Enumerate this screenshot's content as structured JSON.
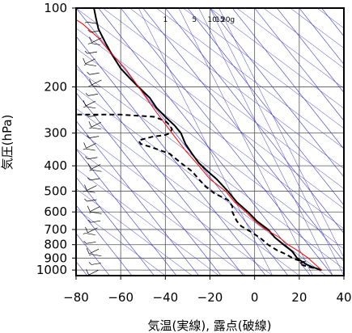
{
  "chart_data": {
    "type": "line",
    "xlabel": "気温(実線), 露点(破線)",
    "ylabel": "気圧(hPa)",
    "xlim": [
      -80,
      40
    ],
    "ylim": [
      1050,
      100
    ],
    "y_scale": "log",
    "x_ticks": [
      -80,
      -60,
      -40,
      -20,
      0,
      20,
      40
    ],
    "y_ticks": [
      100,
      200,
      300,
      400,
      500,
      600,
      700,
      800,
      900,
      1000
    ],
    "mixing_ratio_labels": [
      "1",
      "5",
      "10",
      "15",
      "20g"
    ],
    "grid": true,
    "colors": {
      "temperature": "#000000",
      "dewpoint": "#000000",
      "parcel": "#ff0000",
      "background_lines": "#3333cc",
      "wind": "#000000"
    },
    "series": [
      {
        "style": "solid",
        "color": "#000000",
        "points": [
          [
            30,
            1000
          ],
          [
            26,
            975
          ],
          [
            23,
            950
          ],
          [
            21,
            925
          ],
          [
            19,
            900
          ],
          [
            17,
            850
          ],
          [
            13,
            800
          ],
          [
            9,
            750
          ],
          [
            6,
            700
          ],
          [
            1,
            650
          ],
          [
            -3,
            600
          ],
          [
            -8,
            550
          ],
          [
            -12,
            500
          ],
          [
            -17,
            450
          ],
          [
            -21,
            420
          ],
          [
            -25,
            390
          ],
          [
            -28,
            360
          ],
          [
            -31,
            330
          ],
          [
            -33,
            300
          ],
          [
            -36,
            280
          ],
          [
            -40,
            260
          ],
          [
            -44,
            240
          ],
          [
            -47,
            220
          ],
          [
            -52,
            200
          ],
          [
            -56,
            185
          ],
          [
            -60,
            170
          ],
          [
            -64,
            150
          ],
          [
            -67,
            135
          ],
          [
            -70,
            120
          ],
          [
            -71,
            110
          ],
          [
            -72,
            100
          ]
        ]
      },
      {
        "style": "dashed",
        "color": "#000000",
        "points": [
          [
            30,
            1000
          ],
          [
            25,
            975
          ],
          [
            22,
            960
          ],
          [
            20,
            945
          ],
          [
            22,
            930
          ],
          [
            19,
            915
          ],
          [
            17,
            900
          ],
          [
            14,
            870
          ],
          [
            10,
            840
          ],
          [
            6,
            800
          ],
          [
            3,
            760
          ],
          [
            -1,
            720
          ],
          [
            -6,
            680
          ],
          [
            -8,
            650
          ],
          [
            -10,
            600
          ],
          [
            -10,
            570
          ],
          [
            -12,
            540
          ],
          [
            -18,
            510
          ],
          [
            -22,
            480
          ],
          [
            -25,
            450
          ],
          [
            -28,
            420
          ],
          [
            -33,
            390
          ],
          [
            -38,
            360
          ],
          [
            -46,
            340
          ],
          [
            -51,
            330
          ],
          [
            -52,
            320
          ],
          [
            -46,
            310
          ],
          [
            -40,
            305
          ],
          [
            -38,
            300
          ],
          [
            -37,
            290
          ],
          [
            -38,
            280
          ],
          [
            -40,
            270
          ],
          [
            -45,
            260
          ],
          [
            -60,
            255
          ],
          [
            -70,
            255
          ],
          [
            -80,
            255
          ]
        ]
      },
      {
        "style": "solid",
        "color": "#ff0000",
        "points": [
          [
            30,
            1000
          ],
          [
            27,
            950
          ],
          [
            24,
            900
          ],
          [
            20,
            850
          ],
          [
            15,
            800
          ],
          [
            11,
            750
          ],
          [
            5,
            700
          ],
          [
            0,
            650
          ],
          [
            -4,
            600
          ],
          [
            -9,
            550
          ],
          [
            -13,
            500
          ],
          [
            -20,
            450
          ],
          [
            -25,
            400
          ],
          [
            -31,
            350
          ],
          [
            -37,
            300
          ],
          [
            -44,
            250
          ],
          [
            -52,
            200
          ],
          [
            -58,
            170
          ],
          [
            -64,
            150
          ],
          [
            -70,
            130
          ],
          [
            -77,
            115
          ],
          [
            -82,
            108
          ]
        ]
      }
    ]
  }
}
